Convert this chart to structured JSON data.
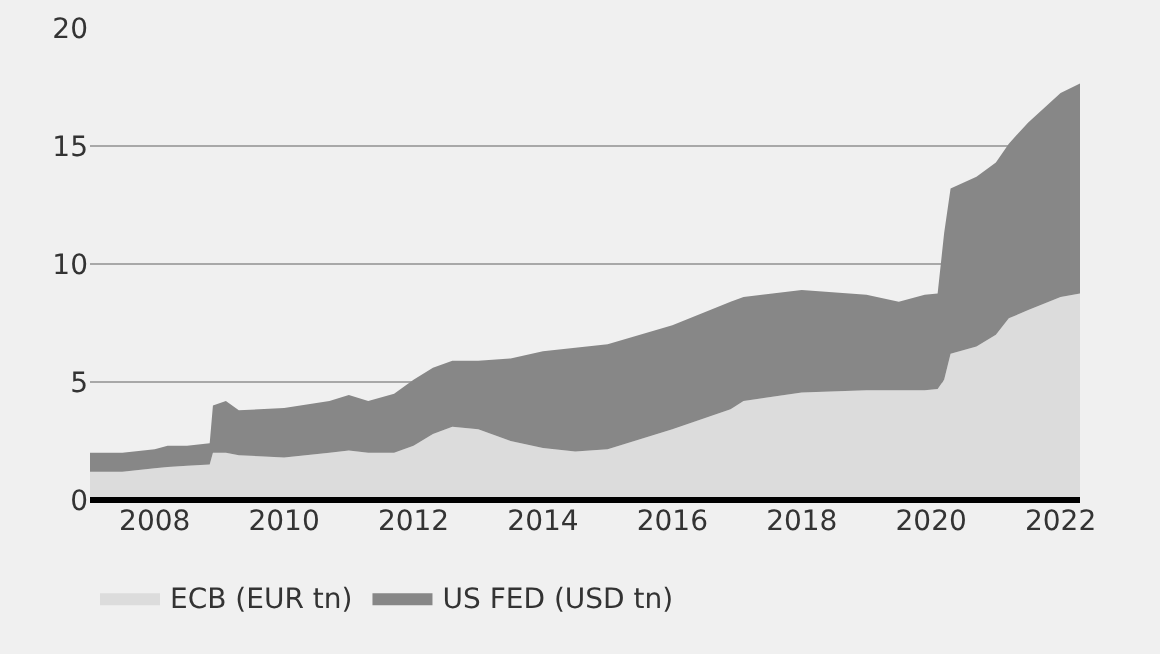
{
  "chart_data": {
    "type": "area",
    "stacked": true,
    "x": [
      2007.0,
      2007.5,
      2008.0,
      2008.2,
      2008.5,
      2008.85,
      2008.9,
      2009.1,
      2009.3,
      2010.0,
      2010.7,
      2011.0,
      2011.3,
      2011.7,
      2012.0,
      2012.3,
      2012.6,
      2013.0,
      2013.5,
      2014.0,
      2014.5,
      2015.0,
      2016.0,
      2016.9,
      2017.1,
      2018.0,
      2019.0,
      2019.5,
      2019.9,
      2020.1,
      2020.2,
      2020.3,
      2020.7,
      2021.0,
      2021.2,
      2021.5,
      2022.0,
      2022.3
    ],
    "series": [
      {
        "name": "ECB (EUR tn)",
        "color": "#dcdcdc",
        "values": [
          1.2,
          1.2,
          1.35,
          1.4,
          1.45,
          1.5,
          2.0,
          2.0,
          1.9,
          1.8,
          2.0,
          2.1,
          2.0,
          2.0,
          2.3,
          2.8,
          3.1,
          3.0,
          2.5,
          2.2,
          2.05,
          2.15,
          3.0,
          3.85,
          4.2,
          4.55,
          4.65,
          4.65,
          4.65,
          4.7,
          5.1,
          6.2,
          6.5,
          7.0,
          7.7,
          8.05,
          8.6,
          8.75
        ]
      },
      {
        "name": "US FED (USD tn)",
        "color": "#878787",
        "values": [
          0.8,
          0.8,
          0.8,
          0.9,
          0.85,
          0.9,
          2.0,
          2.2,
          1.9,
          2.1,
          2.2,
          2.35,
          2.2,
          2.5,
          2.8,
          2.8,
          2.8,
          2.9,
          3.5,
          4.1,
          4.4,
          4.45,
          4.4,
          4.55,
          4.4,
          4.35,
          4.05,
          3.75,
          4.05,
          4.05,
          6.2,
          7.0,
          7.2,
          7.3,
          7.4,
          7.95,
          8.65,
          8.9
        ]
      }
    ],
    "xlim": [
      2007.0,
      2022.3
    ],
    "xticks": [
      2008,
      2010,
      2012,
      2014,
      2016,
      2018,
      2020,
      2022
    ],
    "ylim": [
      0,
      20
    ],
    "yticks": [
      0,
      5,
      10,
      15,
      20
    ],
    "grid": "y",
    "legend": "bottom"
  }
}
